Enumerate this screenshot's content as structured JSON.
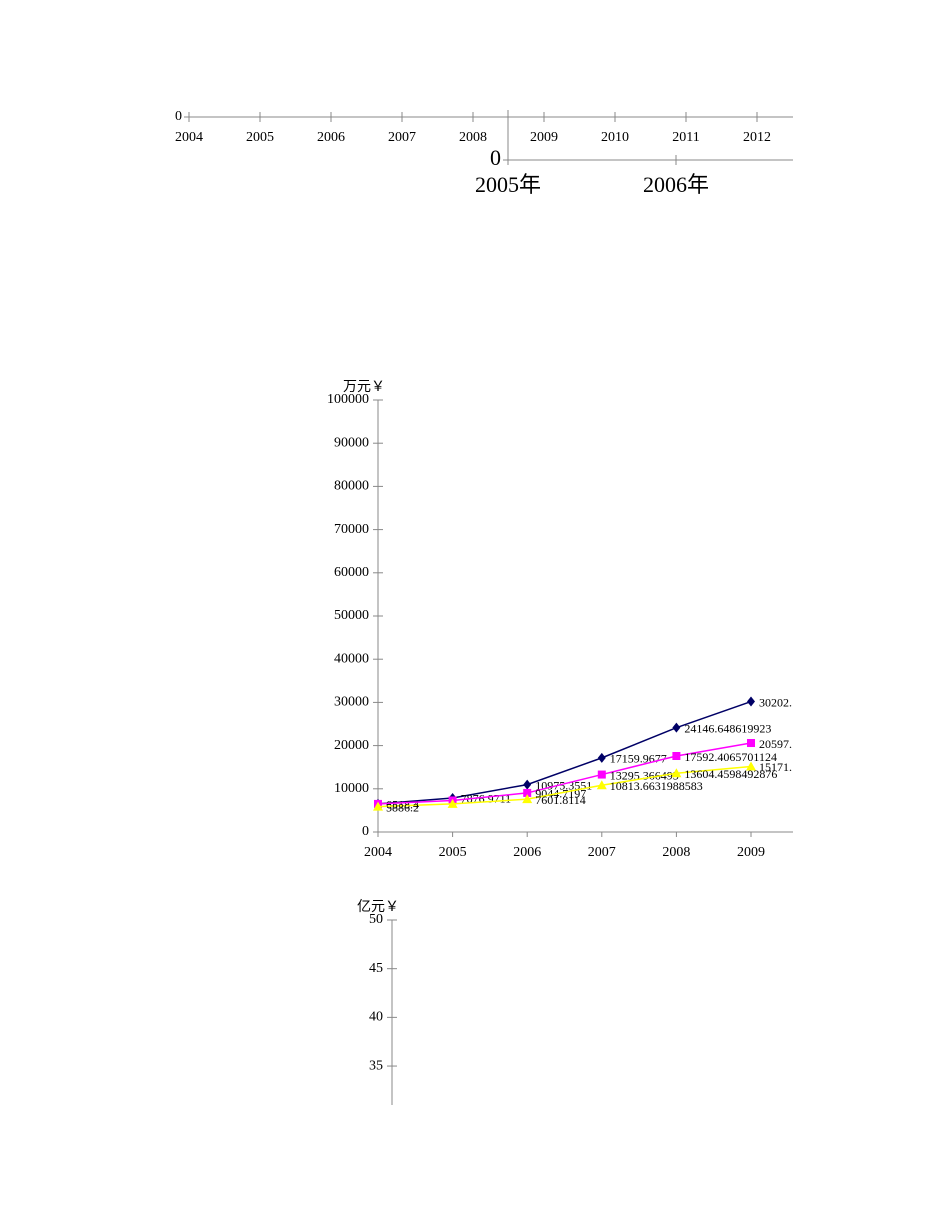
{
  "chart_data": [
    {
      "type": "axis",
      "categories": [
        "2004",
        "2005",
        "2006",
        "2007",
        "2008",
        "2009",
        "2010",
        "2011",
        "2012"
      ],
      "yticks": [
        0
      ]
    },
    {
      "type": "axis",
      "categories": [
        "2005年",
        "2006年"
      ],
      "yticks": [
        0
      ]
    },
    {
      "type": "line",
      "y_label": "万元￥",
      "categories": [
        "2004",
        "2005",
        "2006",
        "2007",
        "2008",
        "2009"
      ],
      "ylim": [
        0,
        100000
      ],
      "yticks": [
        0,
        10000,
        20000,
        30000,
        40000,
        50000,
        60000,
        70000,
        80000,
        90000,
        100000
      ],
      "series": [
        {
          "name": null,
          "color": "#000066",
          "marker": "diamond",
          "values": [
            6518.4,
            7876.9711,
            10975.3551,
            17159.9677,
            24146.648619923,
            30202
          ],
          "value_labels": [
            "6518.4",
            "7876.9711",
            "10975.3551",
            "17159.9677",
            "24146.648619923",
            "30202."
          ]
        },
        {
          "name": null,
          "color": "#ff00ff",
          "marker": "square",
          "values": [
            6500,
            7300,
            9044.7197,
            13295.366495,
            17592.4065701124,
            20597
          ],
          "value_labels": [
            null,
            null,
            "9044.7197",
            "13295.366495",
            "17592.4065701124",
            "20597."
          ]
        },
        {
          "name": null,
          "color": "#ffff00",
          "marker": "triangle",
          "values": [
            5886.2,
            6500,
            7601.8114,
            10813.6631988583,
            13604.4598492876,
            15171
          ],
          "value_labels": [
            "5886.2",
            null,
            "7601.8114",
            "10813.6631988583",
            "13604.4598492876",
            "15171."
          ]
        }
      ]
    },
    {
      "type": "line",
      "y_label": "亿元￥",
      "categories": [],
      "ylim": [
        31,
        50
      ],
      "yticks": [
        35,
        40,
        45,
        50
      ],
      "series": []
    }
  ]
}
